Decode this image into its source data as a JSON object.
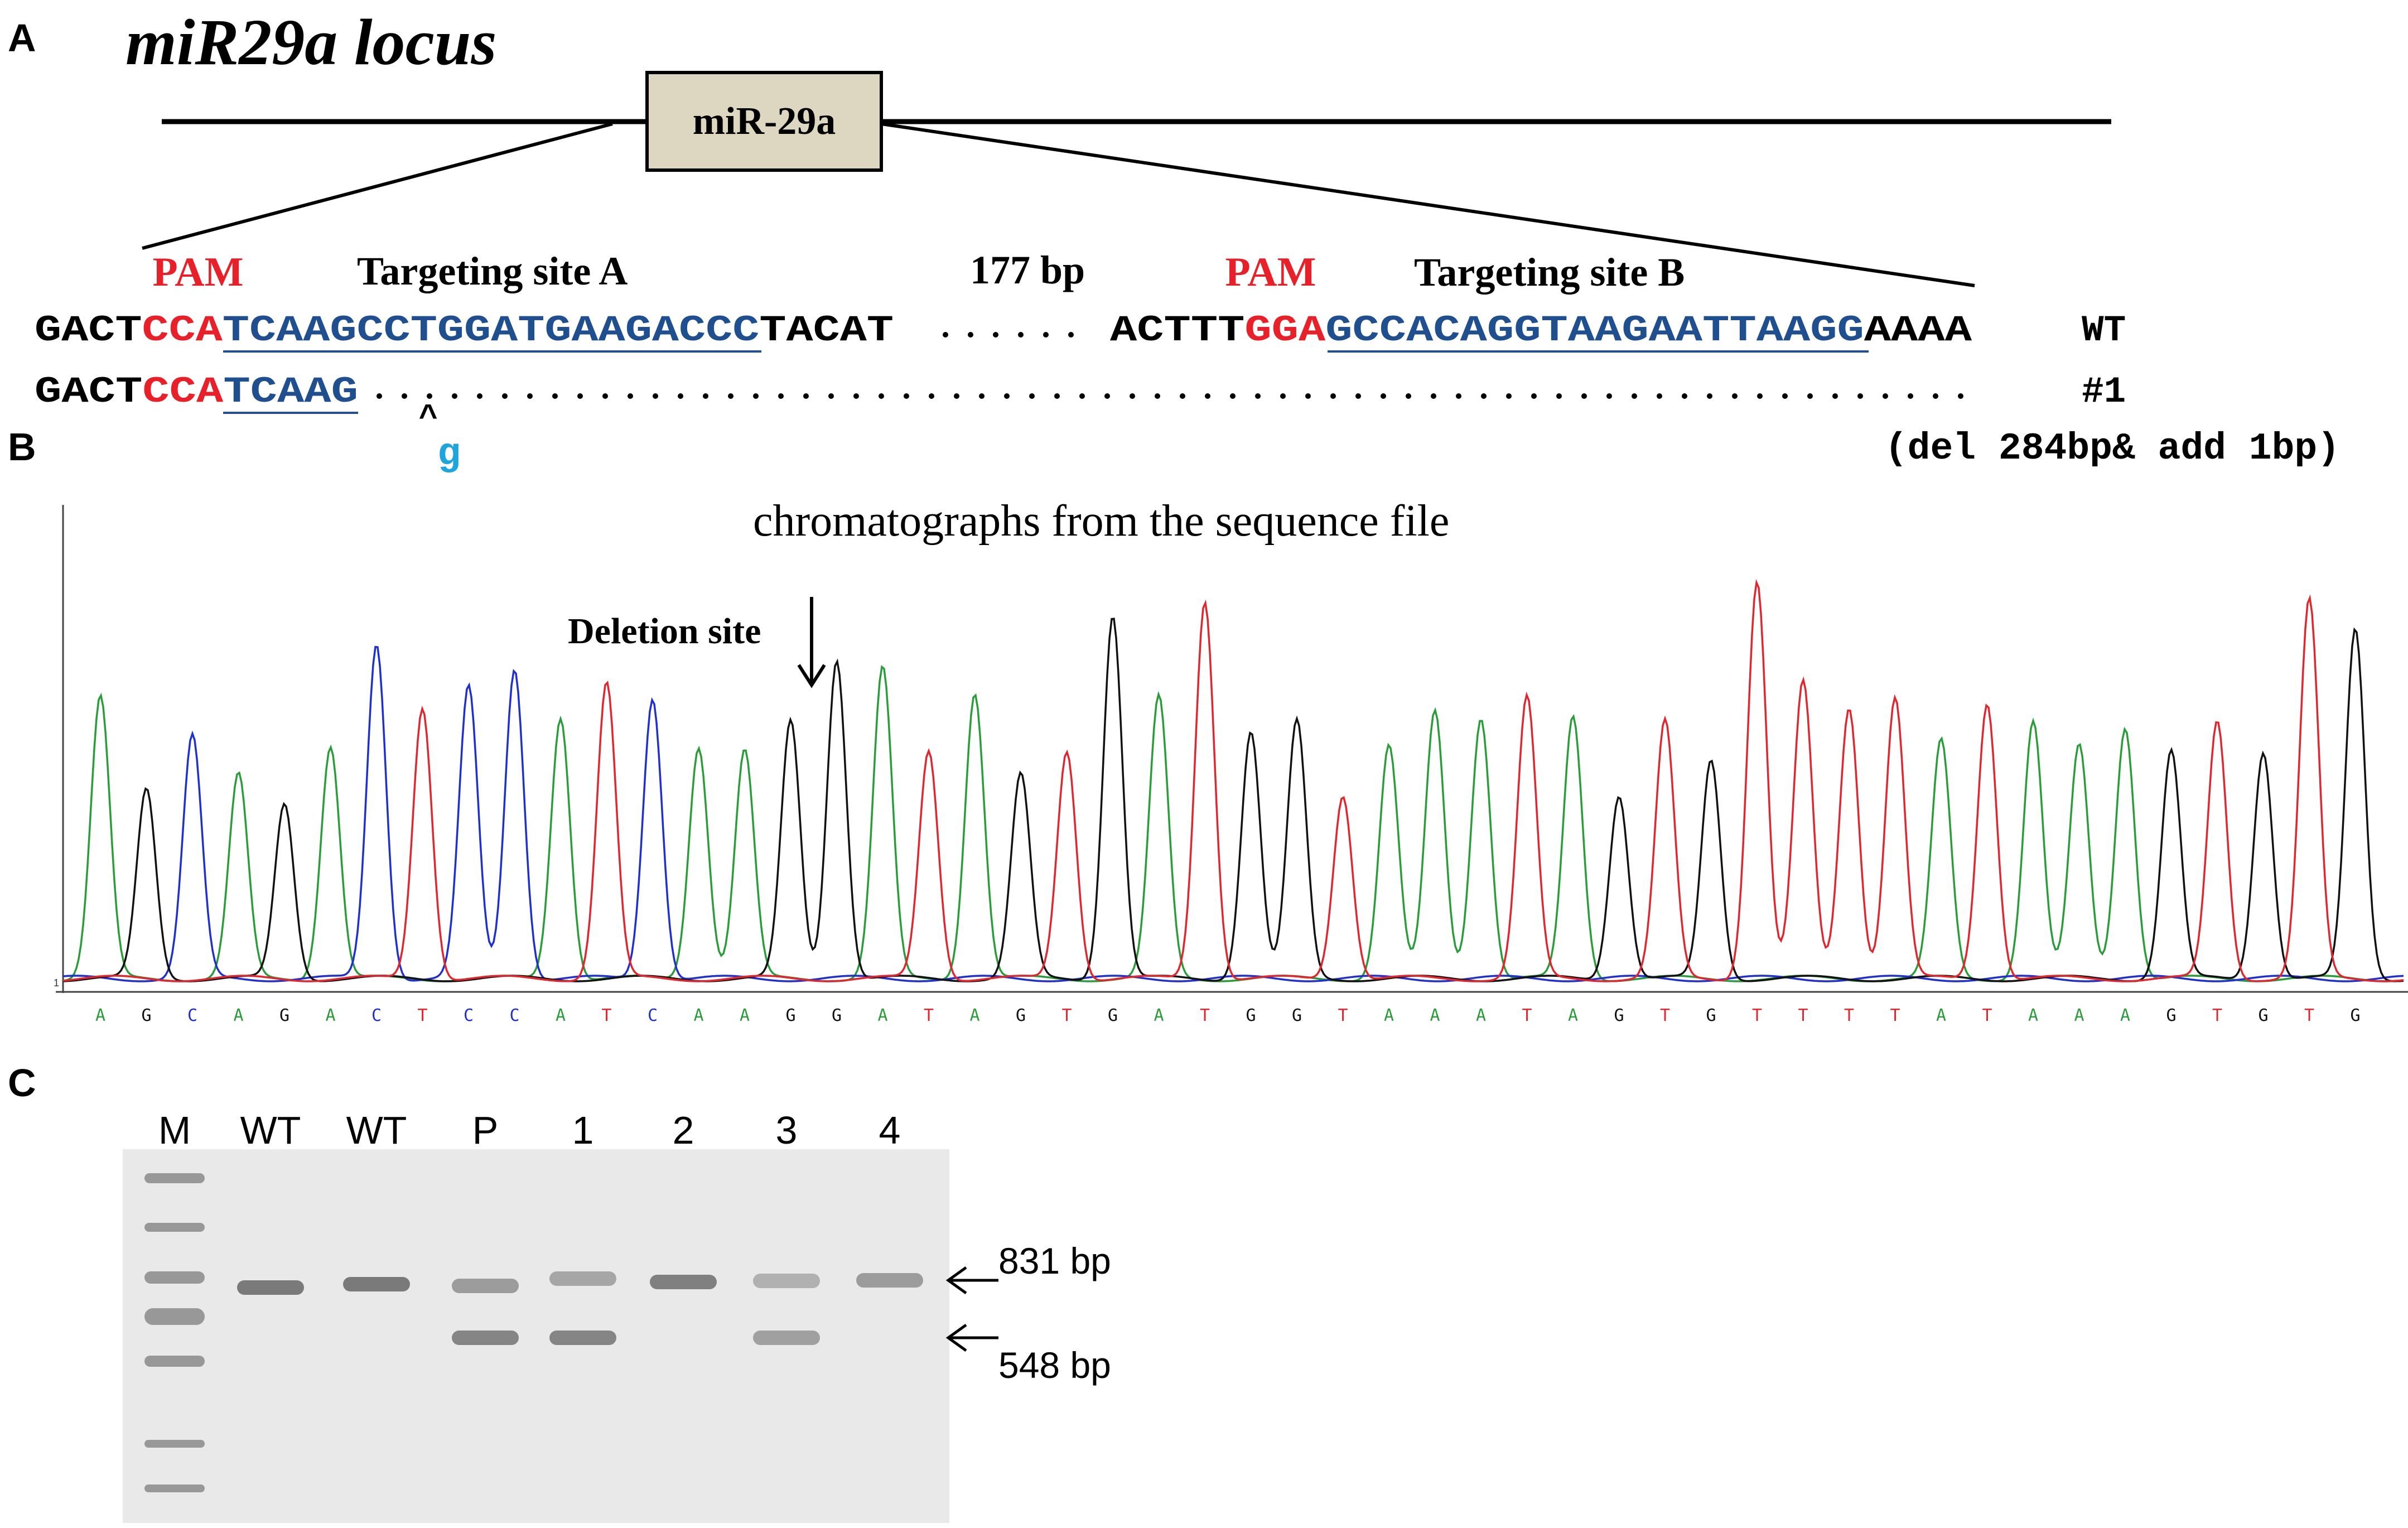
{
  "panels": {
    "a": "A",
    "b": "B",
    "c": "C"
  },
  "panel_a": {
    "title": "miR29a locus",
    "gene_label": "miR-29a",
    "pam_label": "PAM",
    "site_a_label": "Targeting site A",
    "gap_label": "177 bp",
    "site_b_label": "Targeting site B",
    "wt_row": {
      "left_prefix": "GACT",
      "left_pam": "CCA",
      "left_target": "TCAAGCCTGGATGAAGACCC",
      "left_suffix": "TACAT",
      "right_prefix": "ACTTT",
      "right_pam": "GGA",
      "right_target": "GCCACAGGTAAGAATTAAGG",
      "right_suffix": "AAAA",
      "label": "WT"
    },
    "mut_row": {
      "prefix": "GACT",
      "pam": "CCA",
      "target": "TCAAG",
      "label": "#1",
      "insert_mark": "^",
      "insert_base": "g",
      "note": "(del 284bp& add 1bp)"
    },
    "colors": {
      "pam": "#e8202a",
      "target": "#1f4f8f",
      "insert": "#1ea5e0",
      "box": "#ddd6c1"
    }
  },
  "panel_b": {
    "caption": "chromatographs from the sequence file",
    "deletion_label": "Deletion site",
    "baseline_marker": "1",
    "sequence": "AGCAGACTCCATCAAGGATAGTGATGGTAAATAGTGTTTTATAAAGTGTG",
    "colors": {
      "A": "#2a9d3a",
      "C": "#1f2fd0",
      "G": "#111111",
      "T": "#e0262e"
    }
  },
  "panel_c": {
    "lanes": [
      "M",
      "WT",
      "WT",
      "P",
      "1",
      "2",
      "3",
      "4"
    ],
    "band_labels": [
      "831 bp",
      "548 bp"
    ],
    "band_sizes_bp": [
      831,
      548
    ],
    "lanes_with_831": [
      "WT",
      "WT",
      "P",
      "1",
      "2",
      "3",
      "4"
    ],
    "lanes_with_548": [
      "P",
      "1",
      "3"
    ]
  }
}
